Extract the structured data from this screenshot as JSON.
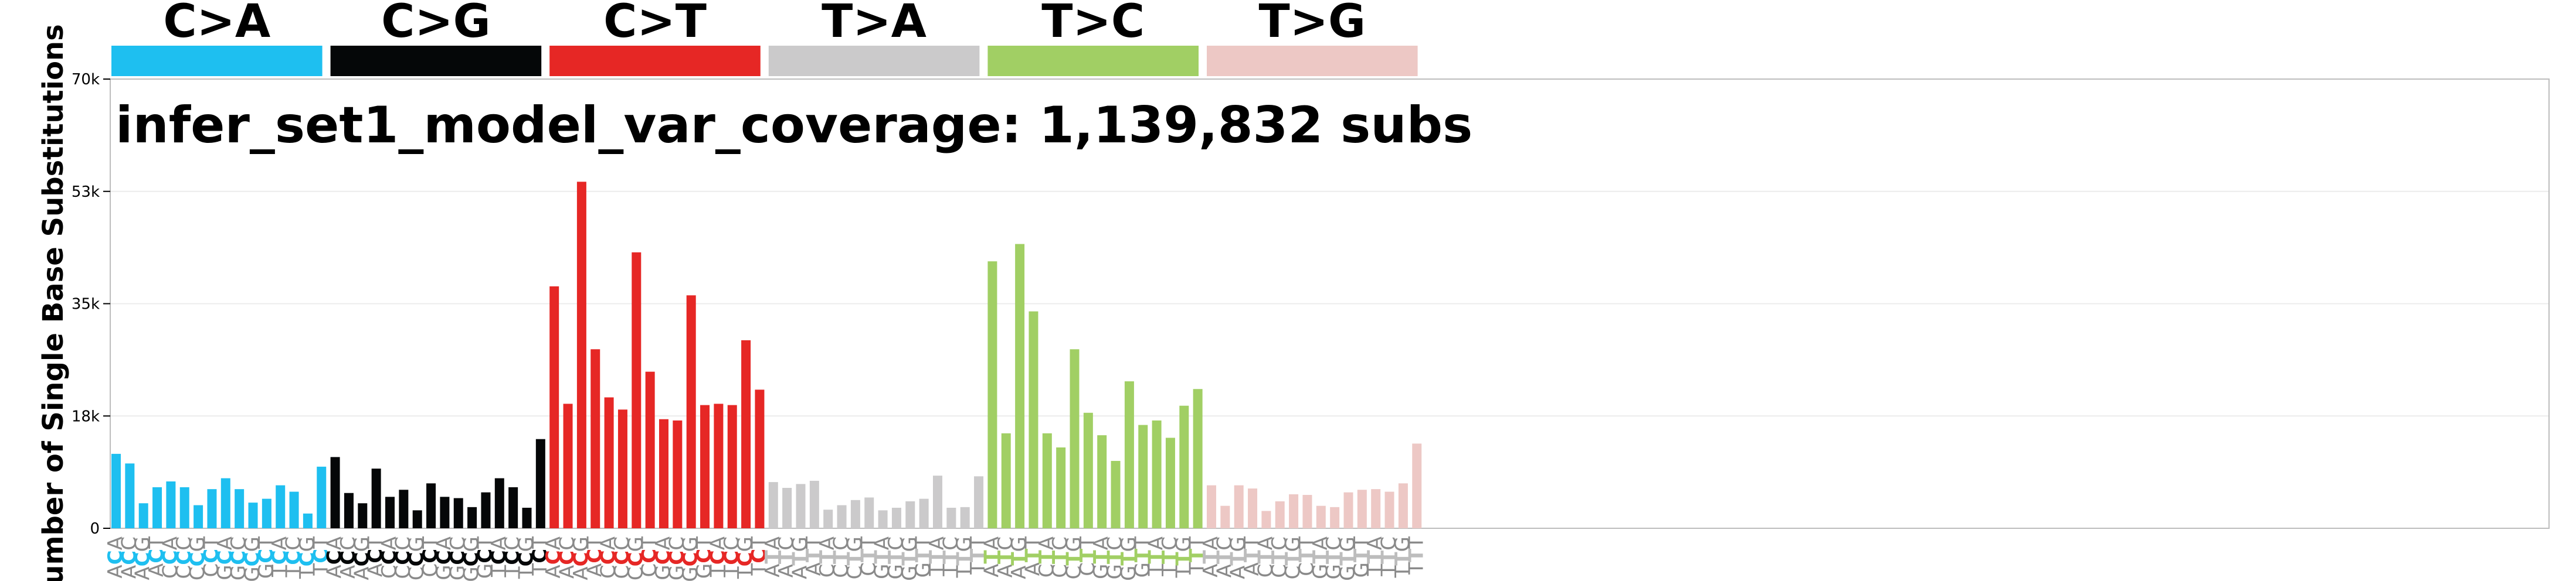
{
  "chart_data": {
    "type": "bar",
    "title": "infer_set1_model_var_coverage: 1,139,832 subs",
    "ylabel": "Number of Single Base Substitutions",
    "xlabel": "",
    "ylim": [
      0,
      70000
    ],
    "yticks": [
      0,
      17500,
      35000,
      52500,
      70000
    ],
    "ytick_labels": [
      "0",
      "18k",
      "35k",
      "53k",
      "70k"
    ],
    "grid": true,
    "groups": [
      {
        "name": "C>A",
        "color": "#1ebff0",
        "center": "C",
        "contexts": [
          "ACA",
          "ACC",
          "ACG",
          "ACT",
          "CCA",
          "CCC",
          "CCG",
          "CCT",
          "GCA",
          "GCC",
          "GCG",
          "GCT",
          "TCA",
          "TCC",
          "TCG",
          "TCT"
        ],
        "values": [
          11600,
          10100,
          3900,
          6400,
          7300,
          6400,
          3600,
          6100,
          7800,
          6100,
          4000,
          4600,
          6700,
          5700,
          2300,
          9600
        ]
      },
      {
        "name": "C>G",
        "color": "#050708",
        "center": "C",
        "contexts": [
          "ACA",
          "ACC",
          "ACG",
          "ACT",
          "CCA",
          "CCC",
          "CCG",
          "CCT",
          "GCA",
          "GCC",
          "GCG",
          "GCT",
          "TCA",
          "TCC",
          "TCG",
          "TCT"
        ],
        "values": [
          11100,
          5500,
          3900,
          9300,
          4900,
          6000,
          2800,
          7000,
          4900,
          4700,
          3300,
          5600,
          7800,
          6400,
          3200,
          13900
        ]
      },
      {
        "name": "C>T",
        "color": "#e62725",
        "center": "C",
        "contexts": [
          "ACA",
          "ACC",
          "ACG",
          "ACT",
          "CCA",
          "CCC",
          "CCG",
          "CCT",
          "GCA",
          "GCC",
          "GCG",
          "GCT",
          "TCA",
          "TCC",
          "TCG",
          "TCT"
        ],
        "values": [
          37700,
          19400,
          54000,
          27900,
          20400,
          18500,
          43000,
          24400,
          17000,
          16800,
          36300,
          19200,
          19400,
          19200,
          29300,
          21600
        ]
      },
      {
        "name": "T>A",
        "color": "#cbcacb",
        "center": "T",
        "contexts": [
          "ATA",
          "ATC",
          "ATG",
          "ATT",
          "CTA",
          "CTC",
          "CTG",
          "CTT",
          "GTA",
          "GTC",
          "GTG",
          "GTT",
          "TTA",
          "TTC",
          "TTG",
          "TTT"
        ],
        "values": [
          7200,
          6300,
          6900,
          7400,
          2900,
          3600,
          4400,
          4800,
          2800,
          3200,
          4200,
          4600,
          8200,
          3200,
          3300,
          8100
        ]
      },
      {
        "name": "T>C",
        "color": "#a1cf64",
        "center": "T",
        "contexts": [
          "ATA",
          "ATC",
          "ATG",
          "ATT",
          "CTA",
          "CTC",
          "CTG",
          "CTT",
          "GTA",
          "GTC",
          "GTG",
          "GTT",
          "TTA",
          "TTC",
          "TTG",
          "TTT"
        ],
        "values": [
          41600,
          14800,
          44300,
          33800,
          14800,
          12600,
          27900,
          18000,
          14500,
          10500,
          22900,
          16100,
          16800,
          14100,
          19100,
          21700
        ]
      },
      {
        "name": "T>G",
        "color": "#edc8c5",
        "center": "T",
        "contexts": [
          "ATA",
          "ATC",
          "ATG",
          "ATT",
          "CTA",
          "CTC",
          "CTG",
          "CTT",
          "GTA",
          "GTC",
          "GTG",
          "GTT",
          "TTA",
          "TTC",
          "TTG",
          "TTT"
        ],
        "values": [
          6700,
          3500,
          6700,
          6200,
          2700,
          4200,
          5300,
          5200,
          3500,
          3300,
          5600,
          6000,
          6100,
          5700,
          7000,
          13200
        ]
      }
    ]
  }
}
